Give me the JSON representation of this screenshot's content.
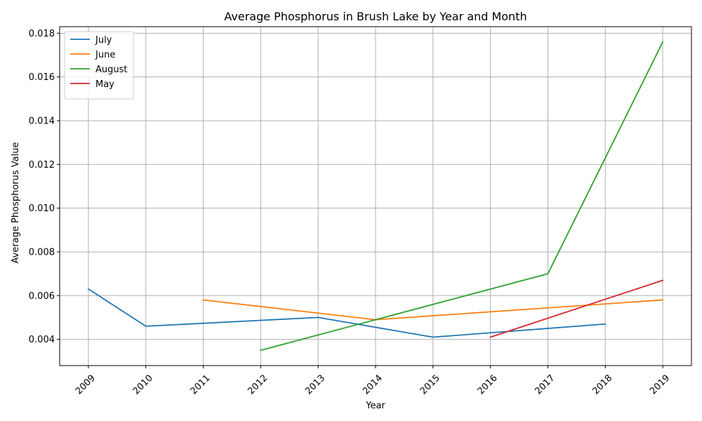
{
  "chart_data": {
    "type": "line",
    "title": "Average Phosphorus in Brush Lake by Year and Month",
    "xlabel": "Year",
    "ylabel": "Average Phosphorus Value",
    "xlim": [
      2008.5,
      2019.5
    ],
    "ylim": [
      0.0028,
      0.0183
    ],
    "x_ticks": [
      "2009",
      "2010",
      "2011",
      "2012",
      "2013",
      "2014",
      "2015",
      "2016",
      "2017",
      "2018",
      "2019"
    ],
    "y_ticks": [
      "0.004",
      "0.006",
      "0.008",
      "0.010",
      "0.012",
      "0.014",
      "0.016",
      "0.018"
    ],
    "grid": true,
    "legend_position": "top-left",
    "series": [
      {
        "name": "July",
        "color": "#1f77b4",
        "x": [
          2009,
          2010,
          2013,
          2015,
          2018
        ],
        "y": [
          0.0063,
          0.0046,
          0.005,
          0.0041,
          0.0047
        ]
      },
      {
        "name": "June",
        "color": "#ff7f0e",
        "x": [
          2011,
          2014,
          2019
        ],
        "y": [
          0.0058,
          0.0049,
          0.0058
        ]
      },
      {
        "name": "August",
        "color": "#2ca02c",
        "x": [
          2012,
          2017,
          2019
        ],
        "y": [
          0.0035,
          0.007,
          0.0176
        ]
      },
      {
        "name": "May",
        "color": "#d62728",
        "x": [
          2016,
          2019
        ],
        "y": [
          0.0041,
          0.0067
        ]
      }
    ]
  }
}
